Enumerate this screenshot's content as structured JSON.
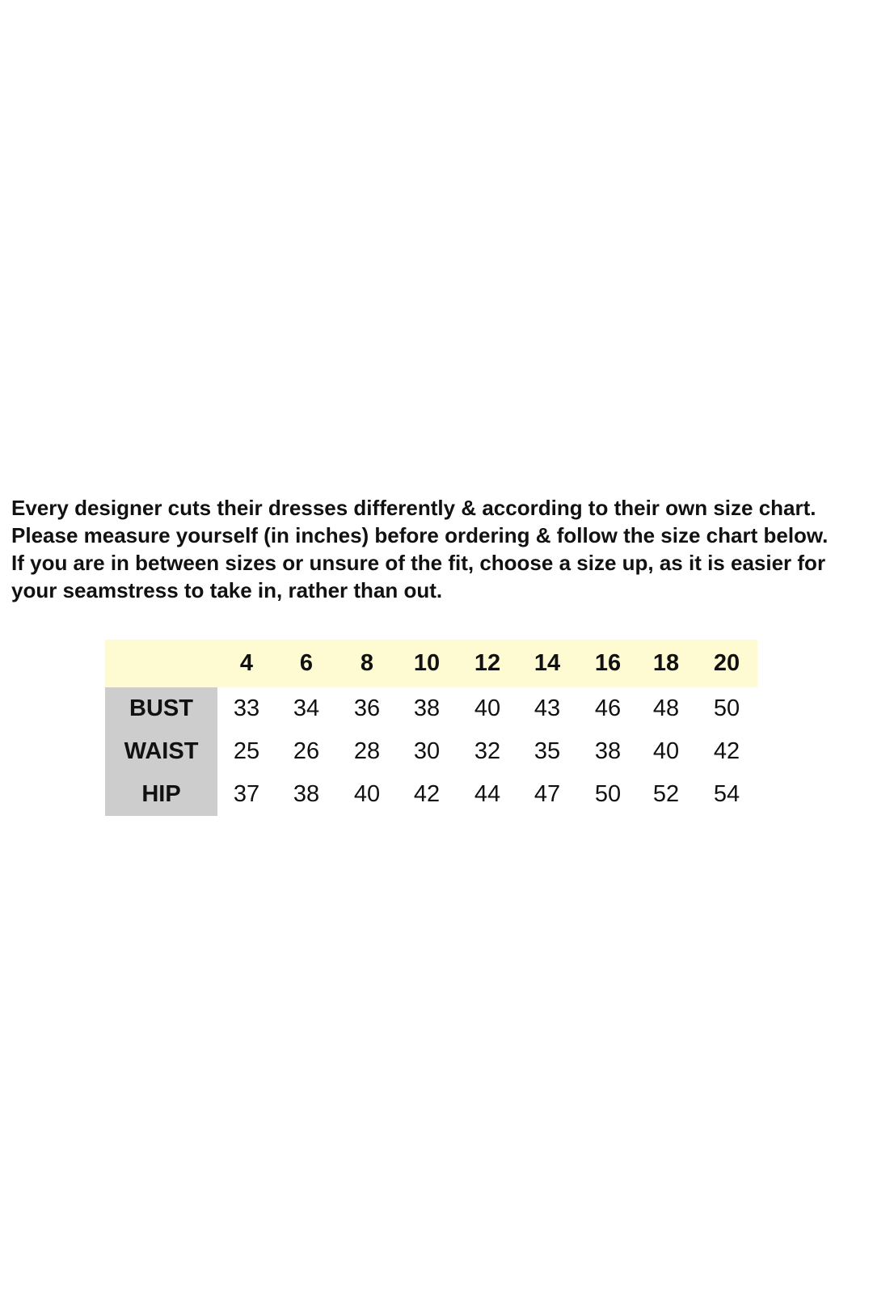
{
  "intro": {
    "paragraph1": "Every designer cuts their dresses differently & according to their own size chart. Please measure yourself (in inches) before ordering & follow the size chart below.",
    "paragraph2": "If you are in between sizes or unsure of the fit, choose a size up, as it is easier for your seamstress to take in, rather than out."
  },
  "size_chart": {
    "header_color": "#fefbd3",
    "label_color": "#cdcdcd",
    "sizes": [
      "4",
      "6",
      "8",
      "10",
      "12",
      "14",
      "16",
      "18",
      "20"
    ],
    "rows": [
      {
        "label": "BUST",
        "values": [
          "33",
          "34",
          "36",
          "38",
          "40",
          "43",
          "46",
          "48",
          "50"
        ]
      },
      {
        "label": "WAIST",
        "values": [
          "25",
          "26",
          "28",
          "30",
          "32",
          "35",
          "38",
          "40",
          "42"
        ]
      },
      {
        "label": "HIP",
        "values": [
          "37",
          "38",
          "40",
          "42",
          "44",
          "47",
          "50",
          "52",
          "54"
        ]
      }
    ]
  }
}
